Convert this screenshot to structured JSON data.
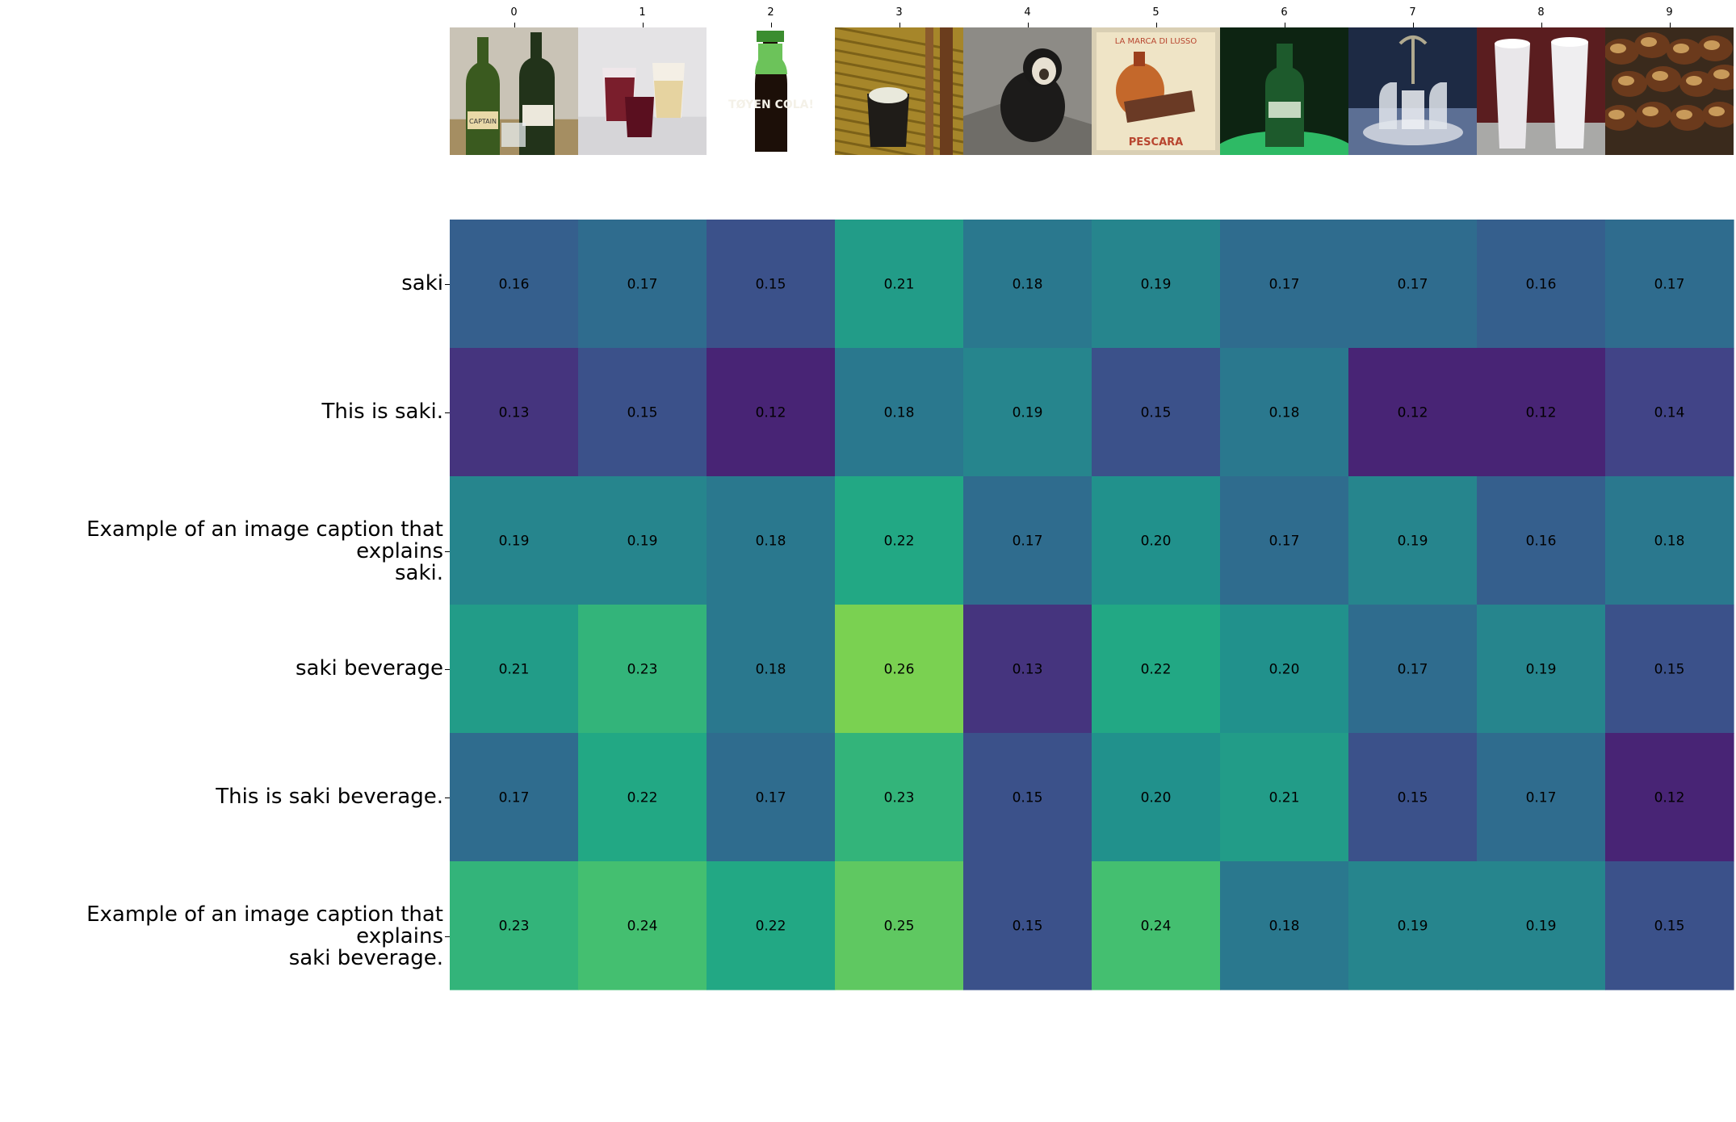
{
  "chart_data": {
    "type": "heatmap",
    "title": "",
    "columns": [
      "0",
      "1",
      "2",
      "3",
      "4",
      "5",
      "6",
      "7",
      "8",
      "9"
    ],
    "rows": [
      "saki",
      "This is saki.",
      "Example of an image caption that explains\nsaki.",
      "saki beverage",
      "This is saki beverage.",
      "Example of an image caption that explains\nsaki beverage."
    ],
    "values": [
      [
        0.16,
        0.17,
        0.15,
        0.21,
        0.18,
        0.19,
        0.17,
        0.17,
        0.16,
        0.17
      ],
      [
        0.13,
        0.15,
        0.12,
        0.18,
        0.19,
        0.15,
        0.18,
        0.12,
        0.12,
        0.14
      ],
      [
        0.19,
        0.19,
        0.18,
        0.22,
        0.17,
        0.2,
        0.17,
        0.19,
        0.16,
        0.18
      ],
      [
        0.21,
        0.23,
        0.18,
        0.26,
        0.13,
        0.22,
        0.2,
        0.17,
        0.19,
        0.15
      ],
      [
        0.17,
        0.22,
        0.17,
        0.23,
        0.15,
        0.2,
        0.21,
        0.15,
        0.17,
        0.12
      ],
      [
        0.23,
        0.24,
        0.22,
        0.25,
        0.15,
        0.24,
        0.18,
        0.19,
        0.19,
        0.15
      ]
    ],
    "colormap": "viridis",
    "vmin": 0.1,
    "vmax": 0.3,
    "images": [
      "two-green-wine-bottles-with-glass",
      "glasses-of-red-and-white-drink",
      "toyen-cola-bottle",
      "cup-of-milky-drink-on-mat",
      "white-faced-saki-monkey",
      "vintage-drink-advertisement-pescara",
      "green-bottle-glowing",
      "glass-cruet-set",
      "two-tall-smoothie-glasses",
      "plate-of-dark-pastries"
    ],
    "image_texts": [
      "CAPTAIN",
      "TØYEN COLA!",
      "LA MARCA DI LUSSO",
      "PESCARA"
    ]
  }
}
